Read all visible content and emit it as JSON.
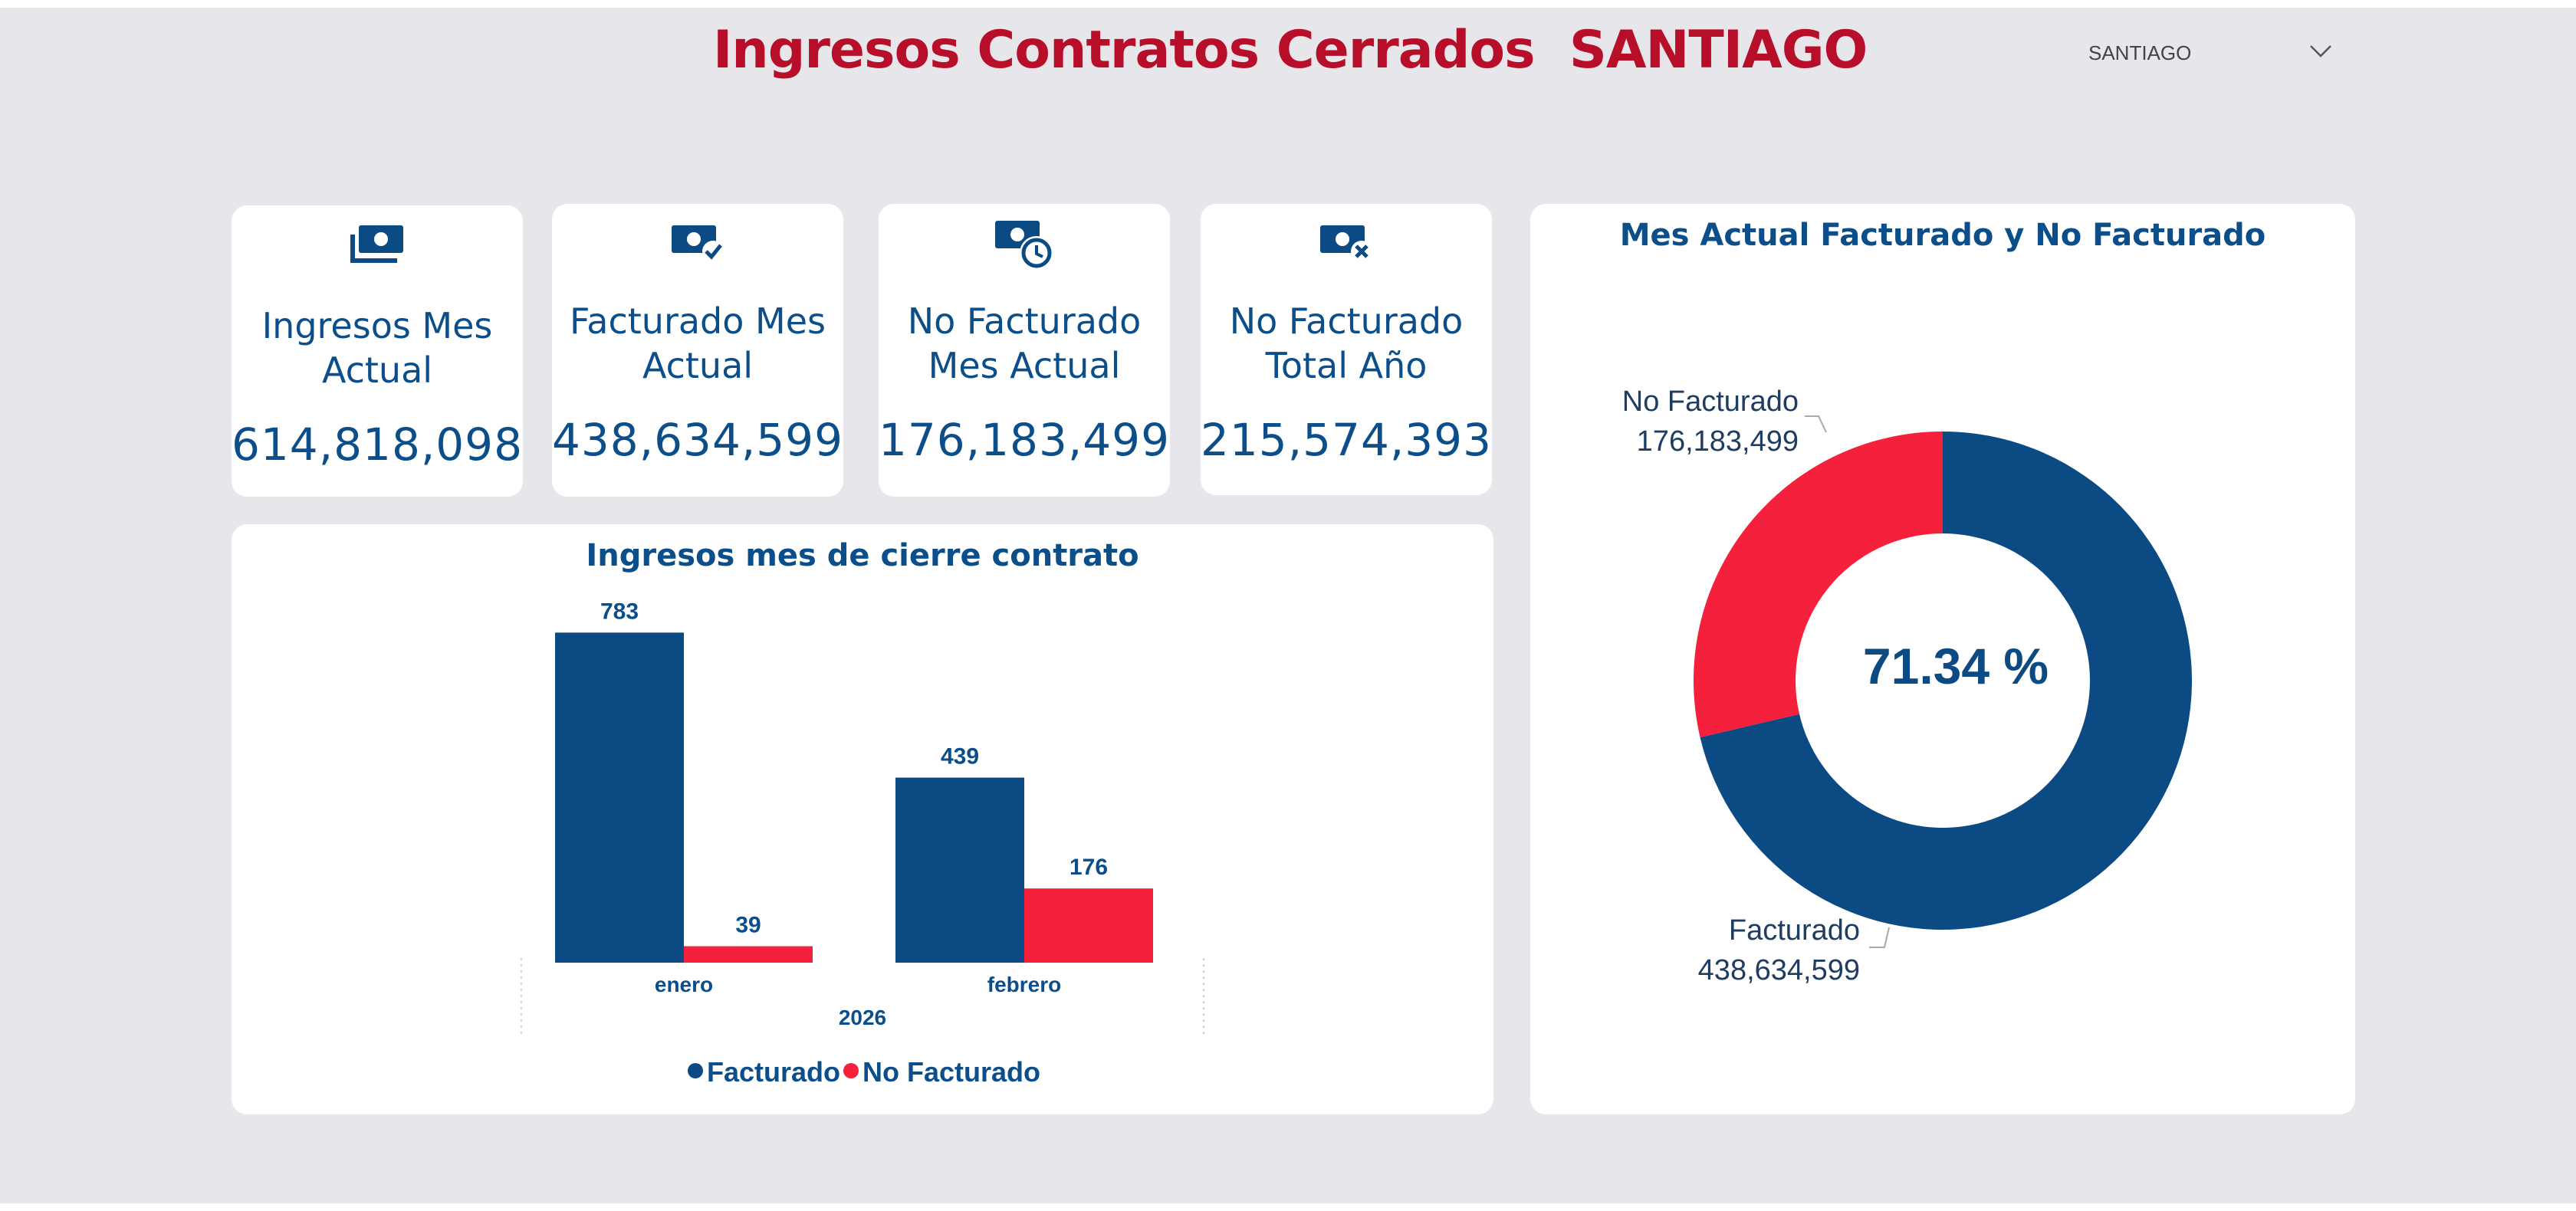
{
  "header": {
    "title": "Ingresos Contratos Cerrados  SANTIAGO",
    "slicer_value": "SANTIAGO"
  },
  "kpis": [
    {
      "icon": "money-stack-icon",
      "label": "Ingresos Mes Actual",
      "value": "614,818,098"
    },
    {
      "icon": "money-check-icon",
      "label": "Facturado Mes Actual",
      "value": "438,634,599"
    },
    {
      "icon": "money-clock-icon",
      "label": "No Facturado Mes Actual",
      "value": "176,183,499"
    },
    {
      "icon": "money-cross-icon",
      "label": "No Facturado Total Año",
      "value": "215,574,393"
    }
  ],
  "colors": {
    "facturado": "#0b4a82",
    "no_facturado": "#f5203c",
    "title_red": "#b70f2a",
    "text_blue": "#0b4e8a"
  },
  "chart_data": [
    {
      "type": "bar",
      "title": "Ingresos mes de cierre contrato",
      "categories": [
        "enero",
        "febrero"
      ],
      "group_label": "2026",
      "series": [
        {
          "name": "Facturado",
          "values": [
            783,
            439
          ]
        },
        {
          "name": "No Facturado",
          "values": [
            39,
            176
          ]
        }
      ],
      "ylim": [
        0,
        800
      ],
      "legend": "bottom-center"
    },
    {
      "type": "pie",
      "title": "Mes Actual Facturado y No Facturado",
      "center_label": "71.34 %",
      "slices": [
        {
          "name": "Facturado",
          "value": 438634599,
          "label": "438,634,599"
        },
        {
          "name": "No Facturado",
          "value": 176183499,
          "label": "176,183,499"
        }
      ]
    }
  ]
}
